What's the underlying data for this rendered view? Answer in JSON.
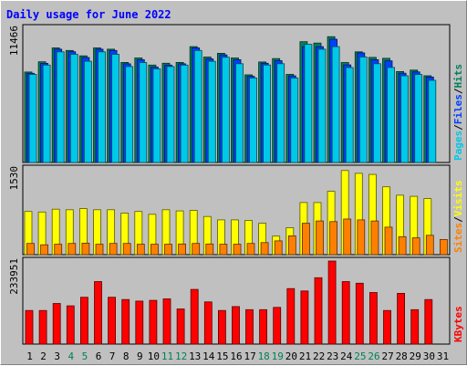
{
  "chart_data": {
    "type": "bar",
    "title": "Daily usage for June 2022",
    "categories": [
      "1",
      "2",
      "3",
      "4",
      "5",
      "6",
      "7",
      "8",
      "9",
      "10",
      "11",
      "12",
      "13",
      "14",
      "15",
      "16",
      "17",
      "18",
      "19",
      "20",
      "21",
      "22",
      "23",
      "24",
      "25",
      "26",
      "27",
      "28",
      "29",
      "30",
      "31"
    ],
    "weekend_days": [
      "4",
      "5",
      "11",
      "12",
      "18",
      "19",
      "25",
      "26"
    ],
    "panels": [
      {
        "id": "hits-files-pages",
        "ymax_label": "11466",
        "ymax": 11466,
        "legend": [
          "Pages",
          "/",
          "Files",
          "/",
          "Hits"
        ],
        "legend_colors": [
          "#00c8e8",
          "#000000",
          "#0040ff",
          "#000000",
          "#00805a"
        ],
        "series": [
          {
            "name": "Hits",
            "color": "#00805a",
            "values": [
              7730,
              8600,
              9790,
              9570,
              9110,
              9790,
              9680,
              8550,
              8930,
              8320,
              8480,
              8550,
              9900,
              9010,
              9330,
              8930,
              7490,
              8590,
              8880,
              7530,
              10320,
              10200,
              10750,
              8540,
              9450,
              8980,
              8900,
              7770,
              7890,
              7410,
              0
            ]
          },
          {
            "name": "Files",
            "color": "#0040ff",
            "values": [
              7620,
              8470,
              9680,
              9460,
              8970,
              9680,
              9570,
              8430,
              8780,
              8150,
              8320,
              8430,
              9790,
              8850,
              9200,
              8780,
              7360,
              8480,
              8700,
              7400,
              9900,
              9900,
              10530,
              8340,
              9360,
              8780,
              8680,
              7630,
              7740,
              7300,
              0
            ]
          },
          {
            "name": "Pages",
            "color": "#00c8e8",
            "values": [
              7530,
              8320,
              9450,
              9240,
              8650,
              9450,
              9240,
              8200,
              8540,
              8000,
              8200,
              8320,
              9570,
              8650,
              8990,
              8440,
              7220,
              8330,
              8440,
              7220,
              10090,
              9680,
              9900,
              8110,
              9020,
              8440,
              8120,
              7410,
              7520,
              7020,
              0
            ]
          }
        ]
      },
      {
        "id": "visits-sites",
        "ymax_label": "1530",
        "ymax": 1530,
        "legend": [
          "Sites",
          "/",
          "Visits"
        ],
        "legend_colors": [
          "#ff8000",
          "#000000",
          "#ffff00"
        ],
        "series": [
          {
            "name": "Visits",
            "color": "#ffff00",
            "values": [
              770,
              760,
              810,
              800,
              820,
              800,
              800,
              740,
              770,
              720,
              800,
              780,
              790,
              680,
              620,
              620,
              610,
              560,
              330,
              480,
              930,
              930,
              1130,
              1500,
              1450,
              1430,
              1210,
              1060,
              1040,
              1000,
              0
            ]
          },
          {
            "name": "Sites",
            "color": "#ff8000",
            "values": [
              200,
              175,
              185,
              200,
              205,
              185,
              200,
              200,
              185,
              185,
              185,
              190,
              200,
              190,
              185,
              185,
              200,
              215,
              245,
              335,
              560,
              600,
              590,
              635,
              620,
              600,
              490,
              320,
              300,
              345,
              270
            ]
          }
        ]
      },
      {
        "id": "kbytes",
        "ymax_label": "233951",
        "ymax": 233951,
        "legend": [
          "KBytes"
        ],
        "legend_colors": [
          "#ff0000"
        ],
        "series": [
          {
            "name": "KBytes",
            "color": "#ff0000",
            "values": [
              94600,
              94600,
              114400,
              107800,
              132000,
              176000,
              132000,
              125400,
              121000,
              123200,
              127600,
              99000,
              154000,
              118800,
              94600,
              105600,
              96800,
              96800,
              103400,
              156200,
              149600,
              187000,
              233951,
              176000,
              171600,
              145200,
              94600,
              143000,
              96800,
              125400,
              0
            ]
          }
        ]
      }
    ]
  }
}
